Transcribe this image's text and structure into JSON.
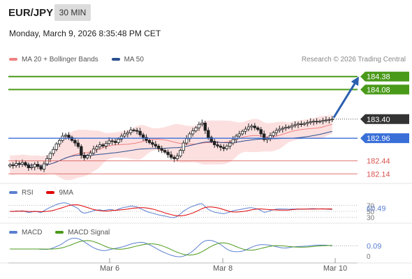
{
  "header": {
    "symbol": "EUR/JPY",
    "timeframe": "30 MIN",
    "datetime": "Monday, March 9, 2026 8:35:48 PM CET",
    "copyright": "Research © 2026 Trading Central"
  },
  "legends": {
    "main": [
      {
        "label": "MA 20 + Bollinger Bands",
        "color": "#f08080"
      },
      {
        "label": "MA 50",
        "color": "#2a4f8f"
      }
    ],
    "rsi": [
      {
        "label": "RSI",
        "color": "#5a7fd0"
      },
      {
        "label": "9MA",
        "color": "#e00000"
      }
    ],
    "macd": [
      {
        "label": "MACD",
        "color": "#5a7fd0"
      },
      {
        "label": "MACD Signal",
        "color": "#4a9a1a"
      }
    ]
  },
  "colors": {
    "resistance": "#4a9a1a",
    "support": "#d9534f",
    "pivot": "#3a6fd8",
    "current": "#333333",
    "arrow": "#2a5fb0",
    "band_fill": "#fbdada"
  },
  "chart_data": [
    {
      "type": "candlestick",
      "x_ticks": [
        "Mar 6",
        "Mar 8",
        "Mar 10"
      ],
      "ylim": [
        182.0,
        184.6
      ],
      "levels": [
        {
          "label": "184.38",
          "value": 184.38,
          "kind": "resistance"
        },
        {
          "label": "184.08",
          "value": 184.08,
          "kind": "resistance"
        },
        {
          "label": "183.40",
          "value": 183.4,
          "kind": "current"
        },
        {
          "label": "182.96",
          "value": 182.96,
          "kind": "pivot"
        },
        {
          "label": "182.44",
          "value": 182.44,
          "kind": "support"
        },
        {
          "label": "182.14",
          "value": 182.14,
          "kind": "support"
        }
      ],
      "close_series": [
        182.35,
        182.33,
        182.38,
        182.36,
        182.4,
        182.34,
        182.28,
        182.3,
        182.36,
        182.31,
        182.25,
        182.37,
        182.49,
        182.61,
        182.7,
        182.83,
        182.91,
        183.01,
        183.03,
        182.98,
        182.91,
        182.85,
        182.77,
        182.57,
        182.51,
        182.56,
        182.62,
        182.71,
        182.76,
        182.81,
        182.78,
        182.84,
        182.9,
        182.89,
        182.86,
        182.94,
        183.01,
        183.06,
        183.09,
        183.15,
        183.14,
        183.12,
        183.04,
        182.98,
        182.91,
        182.86,
        182.82,
        182.78,
        182.72,
        182.68,
        182.64,
        182.58,
        182.52,
        182.49,
        182.55,
        182.68,
        182.85,
        182.95,
        183.06,
        183.13,
        183.2,
        183.28,
        183.31,
        183.14,
        182.98,
        182.89,
        182.81,
        182.78,
        182.75,
        182.72,
        182.78,
        182.85,
        182.93,
        183.01,
        183.06,
        183.12,
        183.17,
        183.22,
        183.24,
        183.2,
        183.16,
        183.06,
        182.93,
        182.95,
        183.02,
        183.09,
        183.14,
        183.17,
        183.19,
        183.21,
        183.22,
        183.25,
        183.27,
        183.29,
        183.28,
        183.3,
        183.32,
        183.34,
        183.35,
        183.34,
        183.35,
        183.37,
        183.38,
        183.39,
        183.4
      ],
      "arrow_target": 184.38
    },
    {
      "type": "line",
      "name": "RSI",
      "current_label": "60.49",
      "ticks": [
        "70",
        "50",
        "30"
      ],
      "ylim": [
        20,
        80
      ]
    },
    {
      "type": "line",
      "name": "MACD",
      "current_label": "0.09",
      "ticks": [
        "0"
      ],
      "ylim": [
        -0.25,
        0.25
      ]
    }
  ]
}
